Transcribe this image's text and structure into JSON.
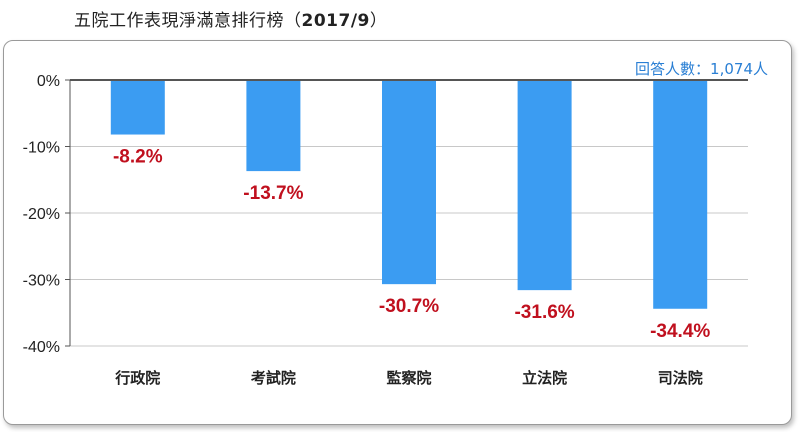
{
  "page": {
    "title_text": "五院工作表現淨滿意排行榜（",
    "title_num": "2017/9",
    "title_close": "）"
  },
  "colors": {
    "bar": "#3b9cf2",
    "data_label": "#c0101e",
    "gridline": "#c8c8c8",
    "axis": "#555555",
    "note": "#2a7fd4"
  },
  "chart_data": {
    "type": "bar",
    "title": "五院工作表現淨滿意排行榜（2017/9）",
    "categories": [
      "行政院",
      "考試院",
      "監察院",
      "立法院",
      "司法院"
    ],
    "values": [
      -8.2,
      -13.7,
      -30.7,
      -31.6,
      -34.4
    ],
    "data_labels": [
      "-8.2%",
      "-13.7%",
      "-30.7%",
      "-31.6%",
      "-34.4%"
    ],
    "ylim": [
      -40,
      0
    ],
    "yticks": [
      0,
      -10,
      -20,
      -30,
      -40
    ],
    "ytick_labels": [
      "0%",
      "-10%",
      "-20%",
      "-30%",
      "-40%"
    ],
    "xlabel": "",
    "ylabel": "",
    "grid": true,
    "annotation": "回答人數：1,074人"
  }
}
